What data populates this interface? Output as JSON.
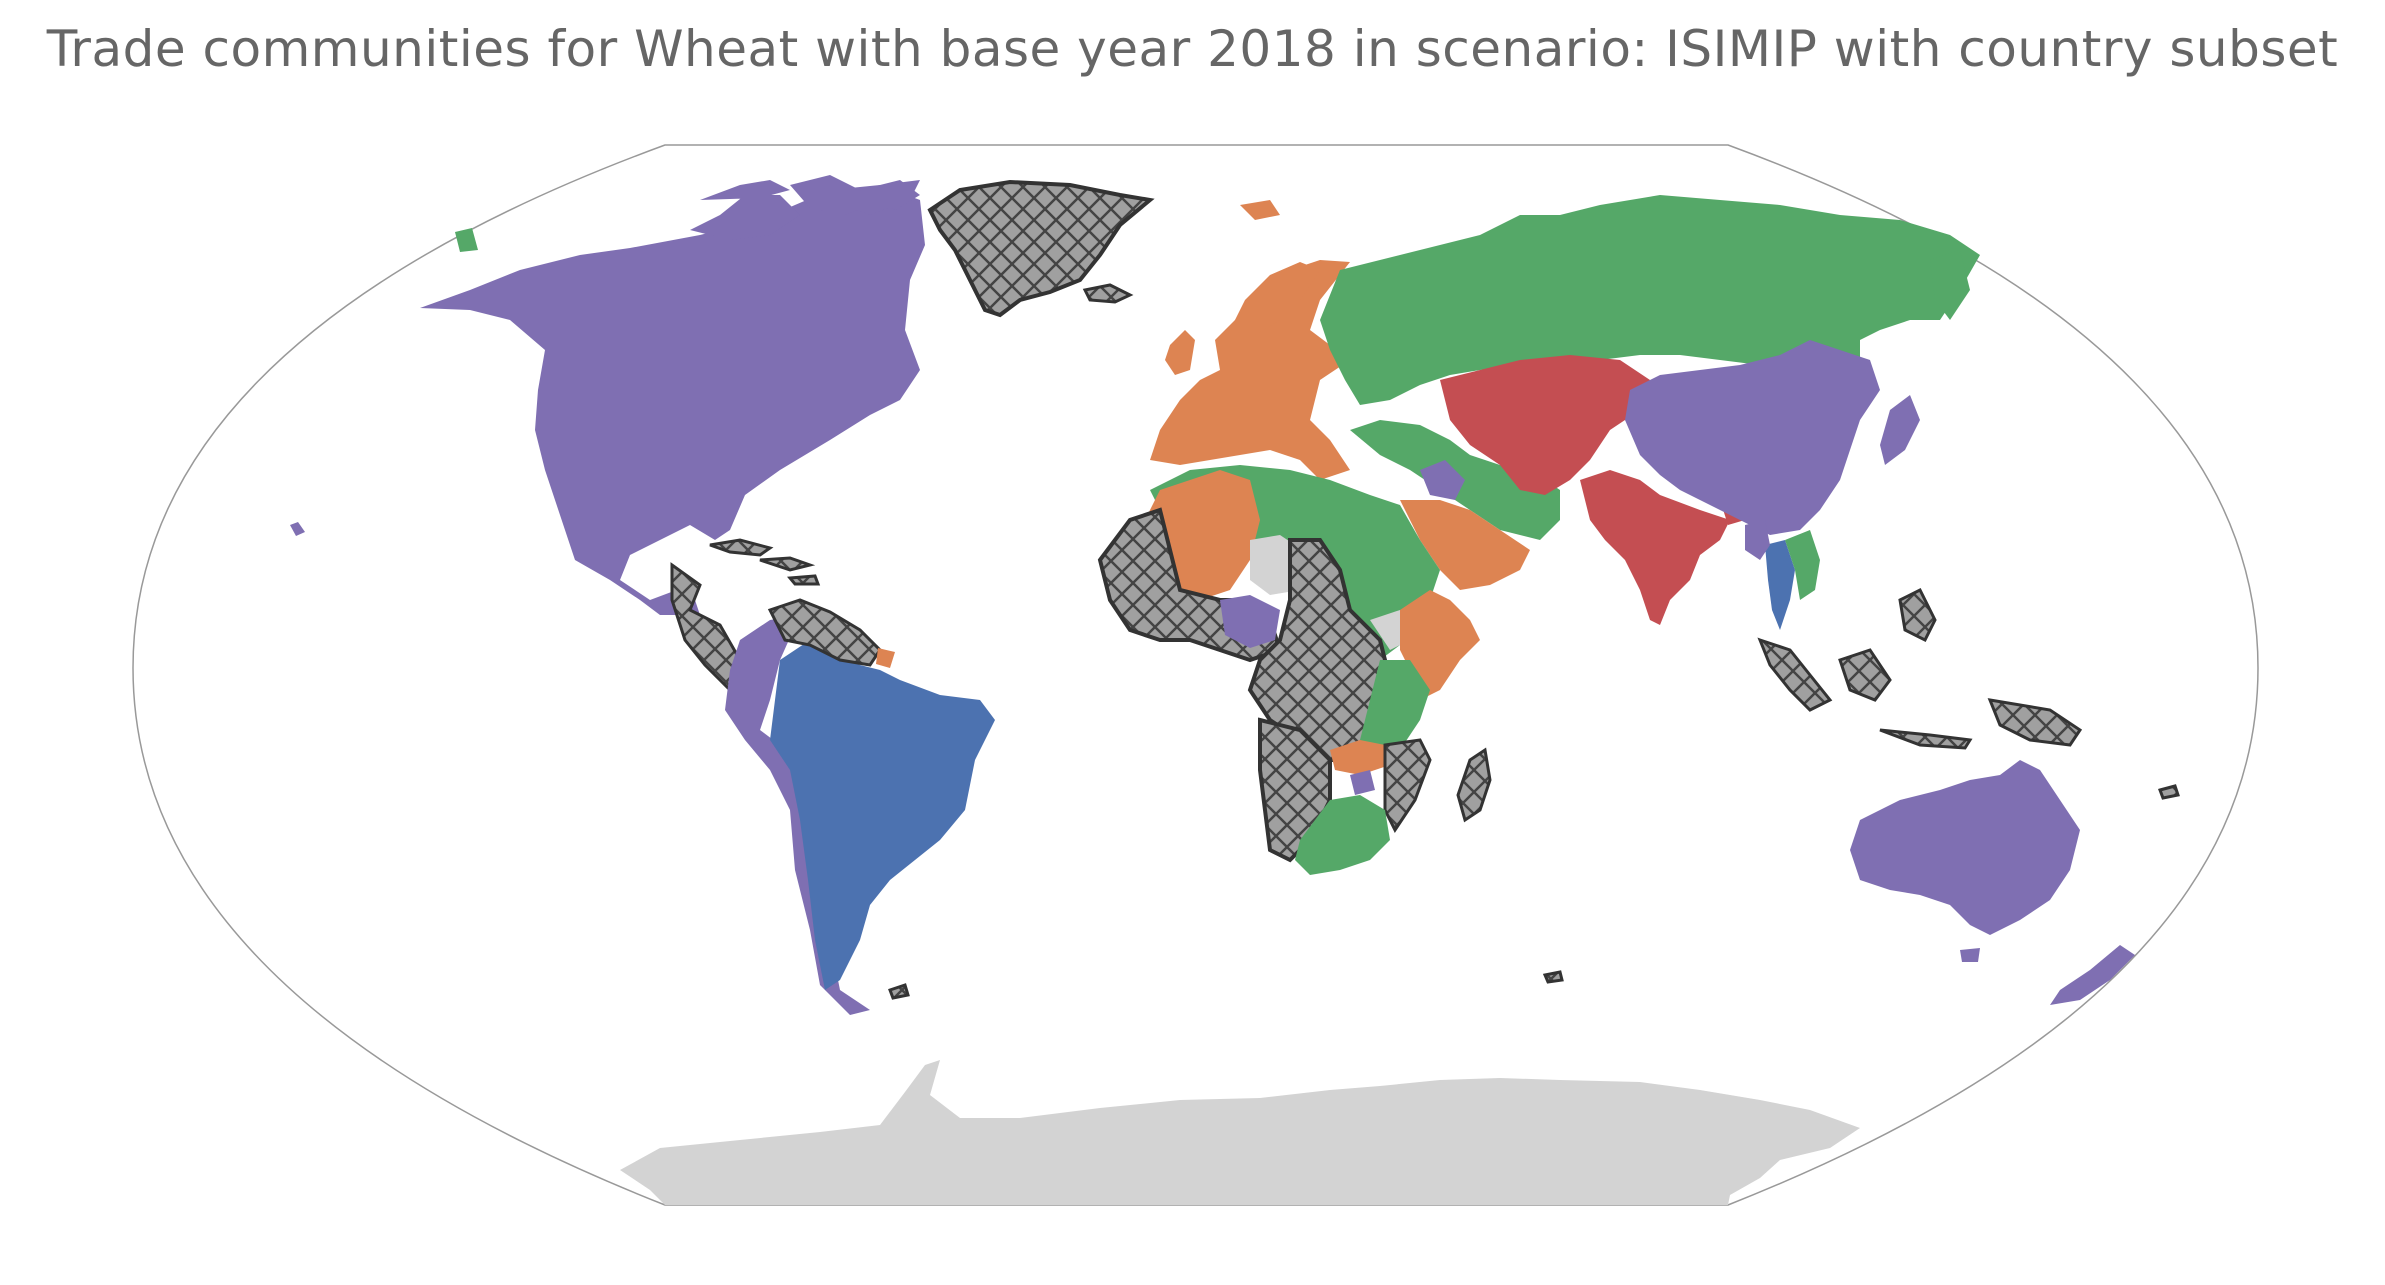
{
  "title": "Trade communities for Wheat with base year 2018 in scenario: ISIMIP with country subset",
  "colors": {
    "community_purple": "#7f6fb2",
    "community_green": "#55a868",
    "community_orange": "#dd8452",
    "community_red": "#c44e52",
    "community_blue": "#4c72b0",
    "no_data_light": "#d3d3d3",
    "excluded_hatched": "#a0a0a0",
    "hatch_line": "#444444",
    "frame": "#999999"
  },
  "communities": [
    {
      "id": "purple",
      "color_key": "community_purple",
      "regions": [
        "North America",
        "Western South America",
        "China & Mongolia",
        "Japan",
        "Australia",
        "New Zealand",
        "Nigeria",
        "Malawi",
        "Jordan & Iraq"
      ]
    },
    {
      "id": "green",
      "color_key": "community_green",
      "regions": [
        "Russia",
        "Eastern Europe",
        "North & East Africa",
        "Southern Africa",
        "Turkey & Iran",
        "Southeast Asia part"
      ]
    },
    {
      "id": "orange",
      "color_key": "community_orange",
      "regions": [
        "Western Europe",
        "Western Sahara & Mali",
        "Arabian Peninsula",
        "Horn of Africa",
        "Zambia"
      ]
    },
    {
      "id": "red",
      "color_key": "community_red",
      "regions": [
        "Central Asia",
        "India & Pakistan",
        "Bangladesh"
      ]
    },
    {
      "id": "blue",
      "color_key": "community_blue",
      "regions": [
        "Brazil & Southern Cone",
        "Thailand"
      ]
    }
  ],
  "hatched_regions": [
    "Greenland",
    "West Africa",
    "Central Africa",
    "Caribbean",
    "Guianas",
    "Indonesia & Philippines",
    "Madagascar",
    "Mozambique"
  ]
}
